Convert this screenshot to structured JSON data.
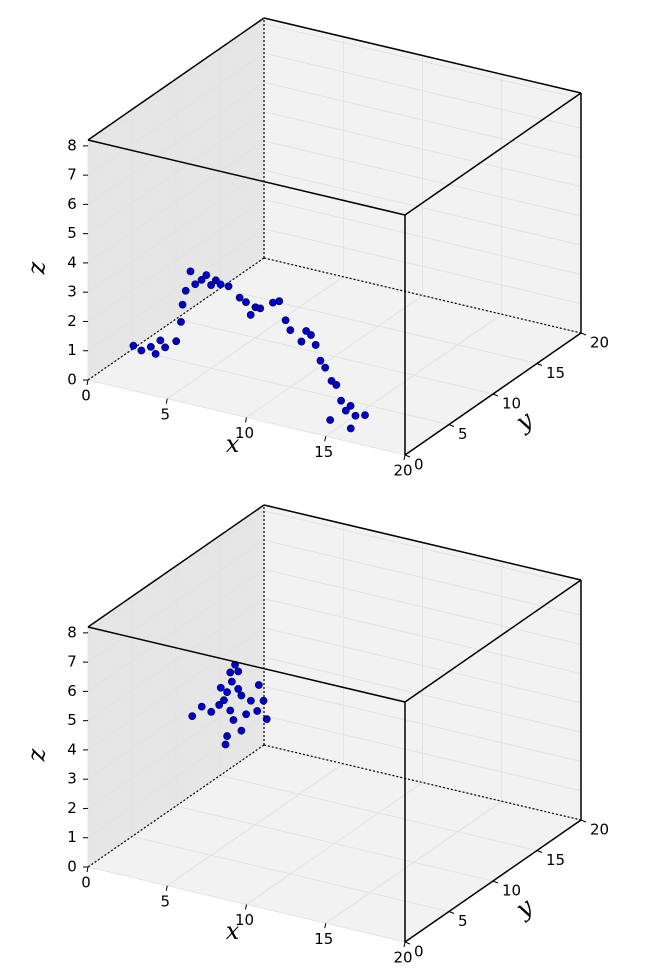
{
  "chart_data": [
    {
      "type": "scatter3d",
      "xlabel": "x",
      "ylabel": "y",
      "zlabel": "z",
      "xlim": [
        0,
        20
      ],
      "ylim": [
        0,
        20
      ],
      "zlim": [
        0,
        8.2
      ],
      "xticks": [
        0,
        5,
        10,
        15,
        20
      ],
      "yticks": [
        0,
        5,
        10,
        15,
        20
      ],
      "zticks": [
        0,
        1,
        2,
        3,
        4,
        5,
        6,
        7,
        8
      ],
      "grid": true,
      "color": "#0000cc",
      "x": [
        1.2,
        1.7,
        2.3,
        2.6,
        2.9,
        3.2,
        3.9,
        4.2,
        4.3,
        4.5,
        4.8,
        5.1,
        5.5,
        5.8,
        6.1,
        6.4,
        6.7,
        7.2,
        7.9,
        8.3,
        8.6,
        8.9,
        9.2,
        10.0,
        10.4,
        10.8,
        11.1,
        11.8,
        12.1,
        12.4,
        12.7,
        13.0,
        13.3,
        13.7,
        14.0,
        14.3,
        14.6,
        14.9,
        15.0,
        16.3,
        17.2,
        16.6
      ],
      "y": [
        3,
        3,
        3,
        3,
        3,
        3,
        3,
        3,
        3,
        3,
        3,
        3,
        3,
        3,
        3,
        3,
        3,
        3,
        3,
        3,
        3,
        3,
        3,
        3,
        3,
        3,
        3,
        3,
        3,
        3,
        3,
        3,
        3,
        3,
        3,
        3,
        3,
        3,
        0.5,
        0.5,
        0.5,
        0.5
      ],
      "z": [
        0.7,
        0.6,
        0.8,
        0.6,
        1.1,
        0.9,
        1.2,
        1.9,
        2.5,
        3.0,
        3.7,
        3.3,
        3.5,
        3.7,
        3.4,
        3.6,
        3.5,
        3.5,
        3.2,
        3.1,
        2.7,
        3.0,
        3.0,
        3.3,
        3.4,
        2.8,
        2.5,
        2.2,
        2.6,
        2.5,
        2.2,
        1.7,
        1.5,
        1.1,
        1.0,
        0.5,
        0.2,
        0.4,
        0.45,
        0.33,
        0.9,
        0.8
      ]
    },
    {
      "type": "scatter3d",
      "xlabel": "x",
      "ylabel": "y",
      "zlabel": "z",
      "xlim": [
        0,
        20
      ],
      "ylim": [
        0,
        20
      ],
      "zlim": [
        0,
        8.2
      ],
      "xticks": [
        0,
        5,
        10,
        15,
        20
      ],
      "yticks": [
        0,
        5,
        10,
        15,
        20
      ],
      "zticks": [
        0,
        1,
        2,
        3,
        4,
        5,
        6,
        7,
        8
      ],
      "grid": true,
      "color": "#0000cc",
      "x": [
        6.5,
        6.7,
        6.3,
        6.0,
        5.8,
        5.5,
        6.2,
        6.4,
        6.0,
        5.9,
        6.9,
        7.2,
        7.5,
        8.0,
        8.3,
        8.5,
        5.0,
        4.4,
        3.8,
        6.7,
        6.2,
        5.6,
        7.9,
        6.9
      ],
      "y": [
        5,
        5,
        5,
        5,
        5,
        5,
        5,
        5,
        5,
        5,
        5,
        5,
        5,
        5,
        5,
        5,
        5,
        5,
        5,
        5,
        5,
        5,
        5,
        5
      ],
      "z": [
        6.7,
        6.5,
        6.1,
        5.7,
        5.4,
        5.2,
        5.1,
        4.8,
        4.2,
        3.9,
        5.7,
        5.1,
        5.6,
        6.2,
        5.7,
        5.1,
        4.9,
        5.0,
        4.6,
        5.9,
        6.4,
        5.8,
        5.3,
        4.5
      ]
    }
  ]
}
